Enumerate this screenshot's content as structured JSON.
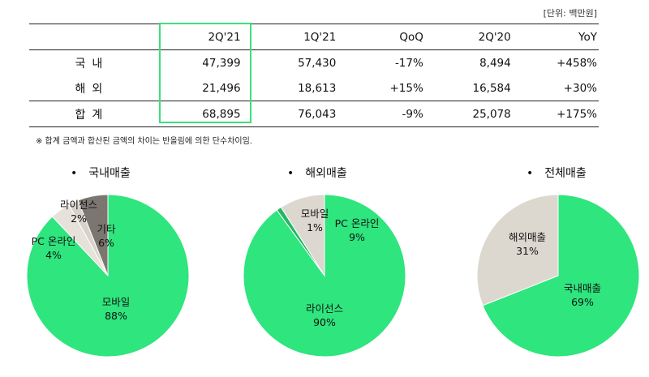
{
  "unit": "[단위: 백만원]",
  "table": {
    "headers": [
      "",
      "2Q'21",
      "1Q'21",
      "QoQ",
      "2Q'20",
      "YoY"
    ],
    "rows": [
      {
        "label": "국내",
        "values": [
          "47,399",
          "57,430",
          "-17%",
          "8,494",
          "+458%"
        ]
      },
      {
        "label": "해외",
        "values": [
          "21,496",
          "18,613",
          "+15%",
          "16,584",
          "+30%"
        ]
      },
      {
        "label": "합계",
        "values": [
          "68,895",
          "76,043",
          "-9%",
          "25,078",
          "+175%"
        ]
      }
    ]
  },
  "note": "※ 합계 금액과 합산된 금액의 차이는 반올림에 의한 단수차이임.",
  "colors": {
    "green": "#2ee57e",
    "beige": "#ddd8cf",
    "gray": "#7c7670",
    "highlight": "#3ce07a"
  },
  "chart_data": [
    {
      "type": "pie",
      "title": "국내매출",
      "slices": [
        {
          "label": "모바일",
          "value": 88,
          "text": "88%",
          "color": "#2ee57e"
        },
        {
          "label": "PC 온라인",
          "value": 4,
          "text": "4%",
          "color": "#e6e1d9"
        },
        {
          "label": "라이선스",
          "value": 2,
          "text": "2%",
          "color": "#d8d3ca"
        },
        {
          "label": "기타",
          "value": 6,
          "text": "6%",
          "color": "#7c7670"
        }
      ]
    },
    {
      "type": "pie",
      "title": "해외매출",
      "slices": [
        {
          "label": "라이선스",
          "value": 90,
          "text": "90%",
          "color": "#2ee57e"
        },
        {
          "label": "모바일",
          "value": 1,
          "text": "1%",
          "color": "#22b863"
        },
        {
          "label": "PC 온라인",
          "value": 9,
          "text": "9%",
          "color": "#ddd8cf"
        }
      ]
    },
    {
      "type": "pie",
      "title": "전체매출",
      "slices": [
        {
          "label": "국내매출",
          "value": 69,
          "text": "69%",
          "color": "#2ee57e"
        },
        {
          "label": "해외매출",
          "value": 31,
          "text": "31%",
          "color": "#ddd8cf"
        }
      ]
    }
  ]
}
